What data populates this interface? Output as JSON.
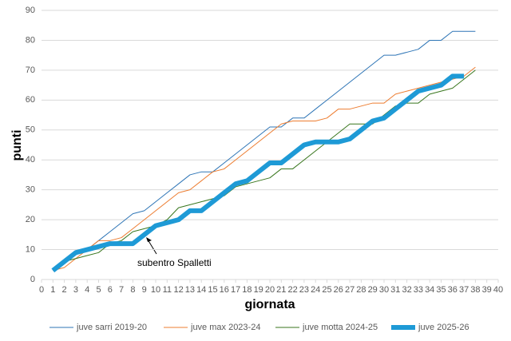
{
  "chart_data": {
    "type": "line",
    "x_label": "giornata",
    "y_label": "punti",
    "annotation": "subentro Spalletti",
    "x": [
      1,
      2,
      3,
      4,
      5,
      6,
      7,
      8,
      9,
      10,
      11,
      12,
      13,
      14,
      15,
      16,
      17,
      18,
      19,
      20,
      21,
      22,
      23,
      24,
      25,
      26,
      27,
      28,
      29,
      30,
      31,
      32,
      33,
      34,
      35,
      36,
      37,
      38
    ],
    "series": [
      {
        "name": "juve sarri 2019-20",
        "color": "#2e75b6",
        "width": 1,
        "values": [
          3,
          6,
          9,
          10,
          13,
          16,
          19,
          22,
          23,
          26,
          29,
          32,
          35,
          36,
          36,
          39,
          42,
          45,
          48,
          51,
          51,
          54,
          54,
          57,
          60,
          63,
          66,
          69,
          72,
          75,
          75,
          76,
          77,
          80,
          80,
          83,
          83,
          83
        ]
      },
      {
        "name": "juve max 2023-24",
        "color": "#ed7d31",
        "width": 1,
        "values": [
          3,
          4,
          7,
          10,
          13,
          13,
          14,
          17,
          20,
          23,
          26,
          29,
          30,
          33,
          36,
          37,
          40,
          43,
          46,
          49,
          52,
          53,
          53,
          53,
          54,
          57,
          57,
          58,
          59,
          59,
          62,
          63,
          64,
          65,
          66,
          67,
          68,
          71
        ]
      },
      {
        "name": "juve motta 2024-25",
        "color": "#38761d",
        "width": 1,
        "values": [
          3,
          6,
          7,
          8,
          9,
          12,
          13,
          16,
          17,
          18,
          20,
          24,
          25,
          26,
          27,
          28,
          31,
          32,
          33,
          34,
          37,
          37,
          40,
          43,
          46,
          49,
          52,
          52,
          52,
          55,
          58,
          59,
          59,
          62,
          63,
          64,
          67,
          70
        ]
      },
      {
        "name": "juve 2025-26",
        "color": "#1e9ad6",
        "width": 6,
        "values": [
          3,
          6,
          9,
          10,
          11,
          12,
          12,
          12,
          15,
          18,
          19,
          20,
          23,
          23,
          26,
          29,
          32,
          33,
          36,
          39,
          39,
          42,
          45,
          46,
          46,
          46,
          47,
          50,
          53,
          54,
          57,
          60,
          63,
          64,
          65,
          68,
          68,
          null
        ]
      }
    ],
    "xlim": [
      0,
      40
    ],
    "xticks": [
      0,
      1,
      2,
      3,
      4,
      5,
      6,
      7,
      8,
      9,
      10,
      11,
      12,
      13,
      14,
      15,
      16,
      17,
      18,
      19,
      20,
      21,
      22,
      23,
      24,
      25,
      26,
      27,
      28,
      29,
      30,
      31,
      32,
      33,
      34,
      35,
      36,
      37,
      38,
      39,
      40
    ],
    "ylim": [
      0,
      90
    ],
    "yticks": [
      0,
      10,
      20,
      30,
      40,
      50,
      60,
      70,
      80,
      90
    ],
    "grid": true,
    "legend": "bottom"
  }
}
